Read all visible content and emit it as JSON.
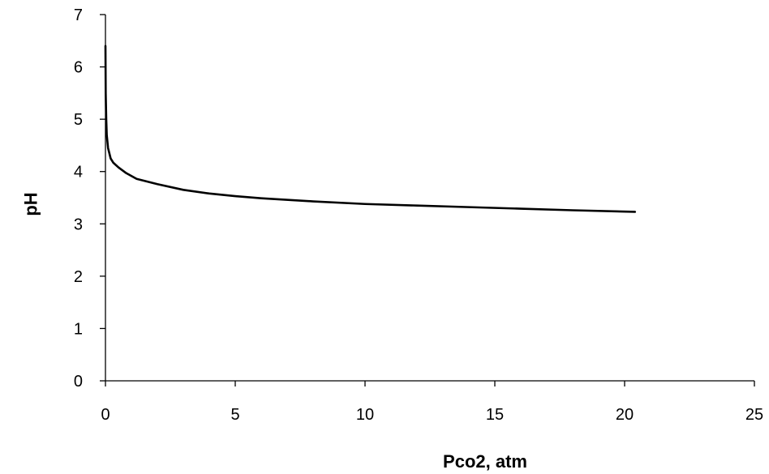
{
  "chart_data": {
    "type": "line",
    "title": "",
    "xlabel": "Pco2, atm",
    "ylabel": "pH",
    "xlim": [
      0,
      25
    ],
    "ylim": [
      0,
      7
    ],
    "x_ticks": [
      0,
      5,
      10,
      15,
      20,
      25
    ],
    "y_ticks": [
      0,
      1,
      2,
      3,
      4,
      5,
      6,
      7
    ],
    "x_tick_labels": [
      "0",
      "5",
      "10",
      "15",
      "20",
      "25"
    ],
    "y_tick_labels": [
      "0",
      "1",
      "2",
      "3",
      "4",
      "5",
      "6",
      "7"
    ],
    "grid": false,
    "legend": "none",
    "series": [
      {
        "color": "#000000",
        "x": [
          0.0,
          0.01,
          0.03,
          0.05,
          0.1,
          0.2,
          0.3,
          0.5,
          0.8,
          1.2,
          2,
          3,
          4,
          5,
          6,
          8,
          10,
          12,
          14,
          16,
          18,
          20.4
        ],
        "y": [
          6.4,
          5.5,
          5.0,
          4.7,
          4.45,
          4.25,
          4.17,
          4.08,
          3.97,
          3.86,
          3.76,
          3.65,
          3.58,
          3.53,
          3.49,
          3.43,
          3.38,
          3.35,
          3.32,
          3.29,
          3.26,
          3.23
        ]
      }
    ]
  }
}
